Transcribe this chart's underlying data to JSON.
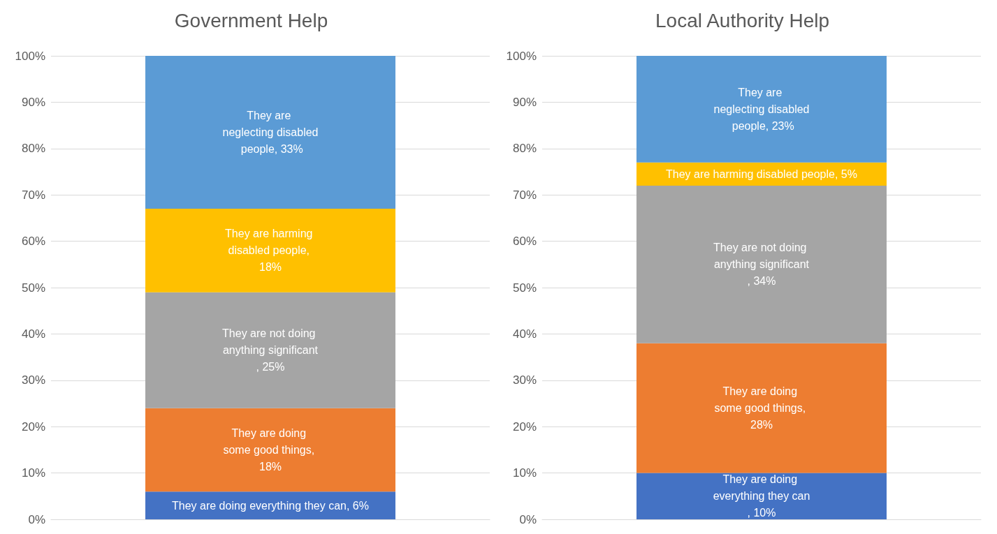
{
  "chart_data": [
    {
      "type": "bar",
      "title": "Government Help",
      "categories": [
        null
      ],
      "stacked": true,
      "grid": "y",
      "data_labels": true,
      "ylim": [
        0,
        100
      ],
      "yticks": [
        {
          "value": 0,
          "label": "0%"
        },
        {
          "value": 10,
          "label": "10%"
        },
        {
          "value": 20,
          "label": "20%"
        },
        {
          "value": 30,
          "label": "30%"
        },
        {
          "value": 40,
          "label": "40%"
        },
        {
          "value": 50,
          "label": "50%"
        },
        {
          "value": 60,
          "label": "60%"
        },
        {
          "value": 70,
          "label": "70%"
        },
        {
          "value": 80,
          "label": "80%"
        },
        {
          "value": 90,
          "label": "90%"
        },
        {
          "value": 100,
          "label": "100%"
        }
      ],
      "series": [
        {
          "color": "#4472c4",
          "values": [
            6
          ],
          "value_labels": [
            "They are doing everything they can, 6%"
          ]
        },
        {
          "color": "#ed7d31",
          "values": [
            18
          ],
          "value_labels": [
            "They are doing some good things, 18%"
          ]
        },
        {
          "color": "#a5a5a5",
          "values": [
            25
          ],
          "value_labels": [
            "They are not doing anything significant, 25%"
          ]
        },
        {
          "color": "#ffc000",
          "values": [
            18
          ],
          "value_labels": [
            "They are harming disabled people, 18%"
          ]
        },
        {
          "color": "#5b9bd5",
          "values": [
            33
          ],
          "value_labels": [
            "They are neglecting disabled people, 33%"
          ]
        }
      ]
    },
    {
      "type": "bar",
      "title": "Local Authority Help",
      "categories": [
        null
      ],
      "stacked": true,
      "grid": "y",
      "data_labels": true,
      "ylim": [
        0,
        100
      ],
      "yticks": [
        {
          "value": 0,
          "label": "0%"
        },
        {
          "value": 10,
          "label": "10%"
        },
        {
          "value": 20,
          "label": "20%"
        },
        {
          "value": 30,
          "label": "30%"
        },
        {
          "value": 40,
          "label": "40%"
        },
        {
          "value": 50,
          "label": "50%"
        },
        {
          "value": 60,
          "label": "60%"
        },
        {
          "value": 70,
          "label": "70%"
        },
        {
          "value": 80,
          "label": "80%"
        },
        {
          "value": 90,
          "label": "90%"
        },
        {
          "value": 100,
          "label": "100%"
        }
      ],
      "series": [
        {
          "color": "#4472c4",
          "values": [
            10
          ],
          "value_labels": [
            "They are doing everything they can, 10%"
          ]
        },
        {
          "color": "#ed7d31",
          "values": [
            28
          ],
          "value_labels": [
            "They are doing some good things, 28%"
          ]
        },
        {
          "color": "#a5a5a5",
          "values": [
            34
          ],
          "value_labels": [
            "They are not doing anything significant, 34%"
          ]
        },
        {
          "color": "#ffc000",
          "values": [
            5
          ],
          "value_labels": [
            "They are harming disabled people, 5%"
          ]
        },
        {
          "color": "#5b9bd5",
          "values": [
            23
          ],
          "value_labels": [
            "They are neglecting disabled people, 23%"
          ]
        }
      ]
    }
  ]
}
